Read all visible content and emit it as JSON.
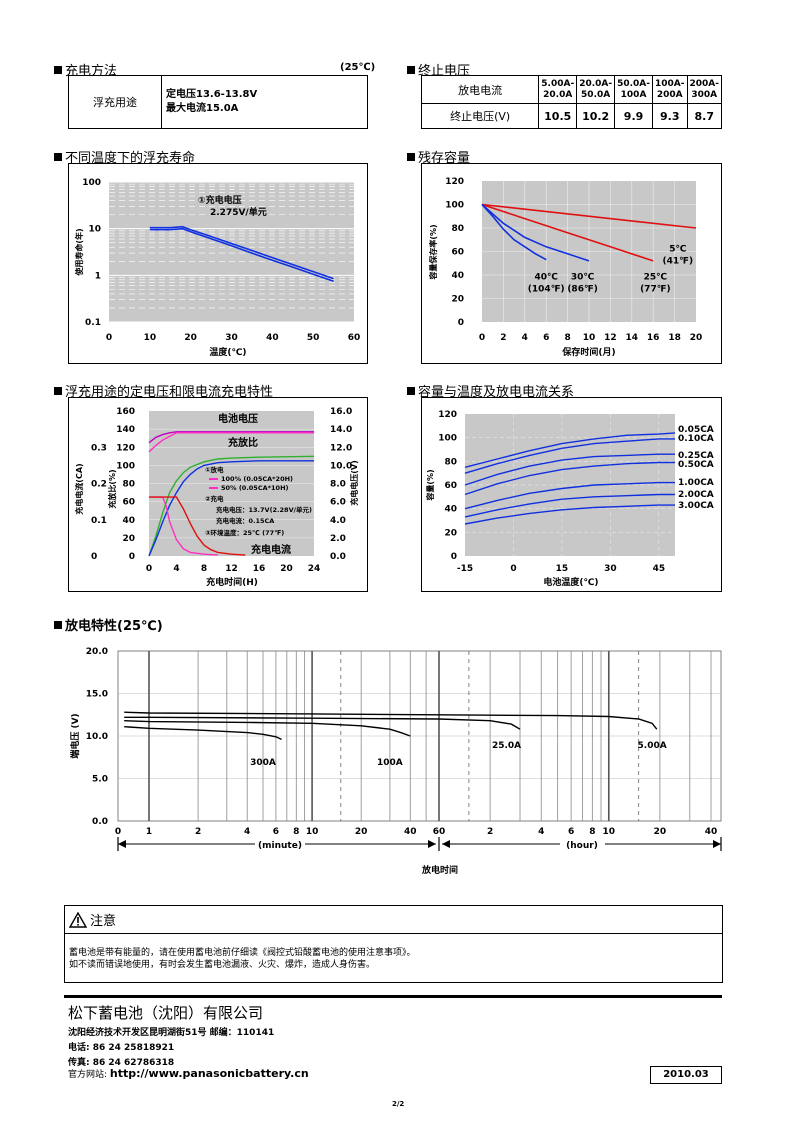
{
  "section1": {
    "title": "充电方法",
    "temp": "(25℃)",
    "row_label": "浮充用途",
    "line1": "定电压13.6-13.8V",
    "line2": "最大电流15.0A"
  },
  "section2": {
    "title": "终止电压",
    "row1_label": "放电电流",
    "row2_label": "终止电压(V)",
    "headers": [
      "5.00A-20.0A",
      "20.0A-50.0A",
      "50.0A-100A",
      "100A-200A",
      "200A-300A"
    ],
    "header_lines": [
      [
        "5.00A-",
        "20.0A"
      ],
      [
        "20.0A-",
        "50.0A"
      ],
      [
        "50.0A-",
        "100A"
      ],
      [
        "100A-",
        "200A"
      ],
      [
        "200A-",
        "300A"
      ]
    ],
    "values": [
      "10.5",
      "10.2",
      "9.9",
      "9.3",
      "8.7"
    ]
  },
  "section3_title": "不同温度下的浮充寿命",
  "section4_title": "残存容量",
  "section5_title": "浮充用途的定电压和限电流充电特性",
  "section6_title": "容量与温度及放电电流关系",
  "section7_title": "放电特性(25℃)",
  "notice": {
    "title": "注意",
    "line1": "蓄电池是带有能量的，请在使用蓄电池前仔细读《阀控式铅酸蓄电池的使用注意事项》。",
    "line2": "如不读而错误地使用，有时会发生蓄电池漏液、火灾、爆炸，造成人身伤害。"
  },
  "footer": {
    "company": "松下蓄电池（沈阳）有限公司",
    "address": "沈阳经济技术开发区昆明湖街51号  邮编：110141",
    "phone": "电话: 86 24 25818921",
    "fax": "传真: 86 24 62786318",
    "web_label": "官方网站: ",
    "web": "http://www.panasonicbattery.cn",
    "date": "2010.03",
    "page": "2/2"
  },
  "chart_data": [
    {
      "id": "float-life",
      "type": "line",
      "xlabel": "温度(℃)",
      "ylabel": "使用寿命(年)",
      "xlim": [
        0,
        60
      ],
      "ylim": [
        0.1,
        100
      ],
      "yscale": "log",
      "xticks": [
        "0",
        "10",
        "20",
        "30",
        "40",
        "50",
        "60"
      ],
      "yticks": [
        "0.1",
        "1",
        "10",
        "100"
      ],
      "annotation": [
        "①充电电压",
        "2.275V/单元"
      ],
      "series": [
        {
          "x": [
            10,
            15,
            18,
            20,
            25,
            30,
            35,
            40,
            45,
            50,
            55
          ],
          "y": [
            10.5,
            10.5,
            11,
            9.5,
            6.8,
            4.8,
            3.4,
            2.4,
            1.7,
            1.2,
            0.85
          ]
        },
        {
          "x": [
            10,
            15,
            18,
            20,
            25,
            30,
            35,
            40,
            45,
            50,
            55
          ],
          "y": [
            9.5,
            9.5,
            10,
            8.6,
            6.1,
            4.3,
            3.0,
            2.1,
            1.5,
            1.05,
            0.75
          ]
        }
      ],
      "color": "#1030e0",
      "grid": true
    },
    {
      "id": "residual-capacity",
      "type": "line",
      "xlabel": "保存时间(月)",
      "ylabel": "容量保存率(%)",
      "xlim": [
        0,
        20
      ],
      "ylim": [
        0,
        120
      ],
      "xticks": [
        "0",
        "2",
        "4",
        "6",
        "8",
        "10",
        "12",
        "14",
        "16",
        "18",
        "20"
      ],
      "yticks": [
        "0",
        "20",
        "40",
        "60",
        "80",
        "100",
        "120"
      ],
      "series": [
        {
          "label_lines": [
            "5℃",
            "(41℉)"
          ],
          "color": "#e01010",
          "x": [
            0,
            20
          ],
          "y": [
            100,
            80
          ]
        },
        {
          "label_lines": [
            "25℃",
            "(77℉)"
          ],
          "color": "#e01010",
          "x": [
            0,
            4,
            8,
            12,
            16
          ],
          "y": [
            100,
            88,
            76,
            64,
            52
          ]
        },
        {
          "label_lines": [
            "30℃",
            "(86℉)"
          ],
          "color": "#1030e0",
          "x": [
            0,
            2,
            4,
            6,
            8,
            10
          ],
          "y": [
            100,
            84,
            72,
            64,
            58,
            52
          ]
        },
        {
          "label_lines": [
            "40℃",
            "(104℉)"
          ],
          "color": "#1030e0",
          "x": [
            0,
            1,
            2,
            3,
            4,
            5,
            6
          ],
          "y": [
            100,
            90,
            79,
            70,
            64,
            58,
            53
          ]
        }
      ],
      "grid": true
    },
    {
      "id": "charge-characteristics",
      "type": "line",
      "xlabel": "充电时间(H)",
      "ylabel_left1": "充电电流(CA)",
      "ylabel_left2": "充放比(%)",
      "ylabel_right": "充电电压(V)",
      "xlim": [
        0,
        24
      ],
      "ylim": [
        0,
        160
      ],
      "xticks": [
        "0",
        "4",
        "8",
        "12",
        "16",
        "20",
        "24"
      ],
      "yticks": [
        "0",
        "20",
        "40",
        "60",
        "80",
        "100",
        "120",
        "140",
        "160"
      ],
      "yticks_right": [
        "0.0",
        "2.0",
        "4.0",
        "6.0",
        "8.0",
        "10.0",
        "12.0",
        "14.0",
        "16.0"
      ],
      "yticks_ca": [
        "0",
        "0.1",
        "0.2",
        "0.3"
      ],
      "labels": {
        "voltage": "电池电压",
        "ratio": "充放比",
        "current": "充电电流"
      },
      "legend": [
        "①放电",
        "100% (0.05CA*20H)",
        "50% (0.05CA*10H)",
        "②充电",
        "充电电压：13.7V(2.28V/单元)",
        "充电电流：0.15CA",
        "③环境温度：25℃ (77℉)"
      ],
      "series": [
        {
          "name": "电池电压",
          "color": "#c000c0",
          "x": [
            0,
            1,
            2,
            3,
            4,
            24
          ],
          "y": [
            125,
            131,
            134,
            136,
            137,
            137
          ]
        },
        {
          "name": "电池电压",
          "color": "#ff30c0",
          "x": [
            0,
            1,
            2,
            3,
            4,
            24
          ],
          "y": [
            115,
            122,
            128,
            132,
            136,
            136
          ]
        },
        {
          "name": "充放比",
          "color": "#30b030",
          "x": [
            0,
            1,
            2,
            3,
            4,
            5,
            6,
            8,
            10,
            12,
            16,
            24
          ],
          "y": [
            0,
            22,
            48,
            70,
            83,
            92,
            98,
            104,
            107,
            108,
            109,
            110
          ]
        },
        {
          "name": "充放比",
          "color": "#1030e0",
          "x": [
            0,
            1,
            2,
            3,
            4,
            5,
            6,
            7,
            8,
            10,
            12,
            16,
            24
          ],
          "y": [
            0,
            18,
            38,
            56,
            70,
            82,
            90,
            96,
            100,
            103,
            104,
            105,
            105
          ]
        },
        {
          "name": "充电电流",
          "color": "#ff30c0",
          "x": [
            0,
            2,
            2.5,
            3,
            4,
            5,
            6,
            8,
            10
          ],
          "y": [
            65,
            65,
            55,
            38,
            18,
            8,
            4,
            2,
            1
          ]
        },
        {
          "name": "充电电流",
          "color": "#e01010",
          "x": [
            0,
            4,
            5,
            6,
            7,
            8,
            9,
            10,
            12,
            14
          ],
          "y": [
            65,
            65,
            52,
            36,
            22,
            12,
            7,
            4,
            2,
            1
          ]
        }
      ],
      "grid": true
    },
    {
      "id": "capacity-temperature",
      "type": "line",
      "xlabel": "电池温度(℃)",
      "ylabel": "容量(%)",
      "xlim": [
        -15,
        50
      ],
      "ylim": [
        0,
        120
      ],
      "xticks": [
        "-15",
        "0",
        "15",
        "30",
        "45"
      ],
      "yticks": [
        "0",
        "20",
        "40",
        "60",
        "80",
        "100",
        "120"
      ],
      "color": "#1030e0",
      "series": [
        {
          "name": "0.05CA",
          "x": [
            -15,
            -5,
            5,
            15,
            25,
            35,
            45,
            52
          ],
          "y": [
            75,
            82,
            89,
            95,
            99,
            102,
            103,
            104
          ]
        },
        {
          "name": "0.10CA",
          "x": [
            -15,
            -5,
            5,
            15,
            25,
            35,
            45,
            52
          ],
          "y": [
            70,
            78,
            85,
            91,
            95,
            97,
            99,
            99
          ]
        },
        {
          "name": "0.25CA",
          "x": [
            -15,
            -5,
            5,
            15,
            25,
            35,
            45,
            52
          ],
          "y": [
            60,
            69,
            76,
            81,
            84,
            85,
            86,
            86
          ]
        },
        {
          "name": "0.50CA",
          "x": [
            -15,
            -5,
            5,
            15,
            25,
            35,
            45,
            52
          ],
          "y": [
            52,
            61,
            68,
            73,
            76,
            78,
            79,
            79
          ]
        },
        {
          "name": "1.00CA",
          "x": [
            -15,
            -5,
            5,
            15,
            25,
            35,
            45,
            52
          ],
          "y": [
            40,
            47,
            53,
            57,
            60,
            61,
            62,
            62
          ]
        },
        {
          "name": "2.00CA",
          "x": [
            -15,
            -5,
            5,
            15,
            25,
            35,
            45,
            52
          ],
          "y": [
            33,
            39,
            44,
            48,
            50,
            51,
            52,
            52
          ]
        },
        {
          "name": "3.00CA",
          "x": [
            -15,
            -5,
            5,
            15,
            25,
            35,
            45,
            52
          ],
          "y": [
            27,
            32,
            36,
            39,
            41,
            42,
            43,
            43
          ]
        }
      ],
      "grid": true
    },
    {
      "id": "discharge",
      "type": "line",
      "xlabel": "放电时间",
      "ylabel": "端电压 (V)",
      "ylim": [
        0,
        20
      ],
      "yticks": [
        "0.0",
        "5.0",
        "10.0",
        "15.0",
        "20.0"
      ],
      "xticks_minute": [
        "0",
        "1",
        "2",
        "4",
        "6",
        "8",
        "10",
        "20",
        "40",
        "60"
      ],
      "xticks_hour": [
        "2",
        "4",
        "6",
        "8",
        "10",
        "20",
        "40"
      ],
      "unit_minute": "(minute)",
      "unit_hour": "(hour)",
      "series": [
        {
          "name": "300A",
          "x_minutes": [
            0.2,
            1,
            2,
            4,
            5,
            6,
            6.5
          ],
          "y": [
            11.1,
            10.9,
            10.7,
            10.4,
            10.2,
            9.9,
            9.6
          ]
        },
        {
          "name": "100A",
          "x_minutes": [
            0.2,
            1,
            4,
            10,
            20,
            30,
            35,
            40
          ],
          "y": [
            11.8,
            11.7,
            11.6,
            11.5,
            11.2,
            10.8,
            10.4,
            10.0
          ]
        },
        {
          "name": "25.0A",
          "x_minutes": [
            0.2,
            1,
            10,
            60,
            120,
            160,
            180
          ],
          "y": [
            12.2,
            12.2,
            12.1,
            12.0,
            11.8,
            11.4,
            10.8
          ]
        },
        {
          "name": "5.00A",
          "x_minutes": [
            0.2,
            1,
            10,
            60,
            300,
            600,
            900,
            1080,
            1150
          ],
          "y": [
            12.8,
            12.7,
            12.6,
            12.5,
            12.4,
            12.3,
            12.0,
            11.5,
            10.8
          ]
        }
      ],
      "grid": true
    }
  ]
}
